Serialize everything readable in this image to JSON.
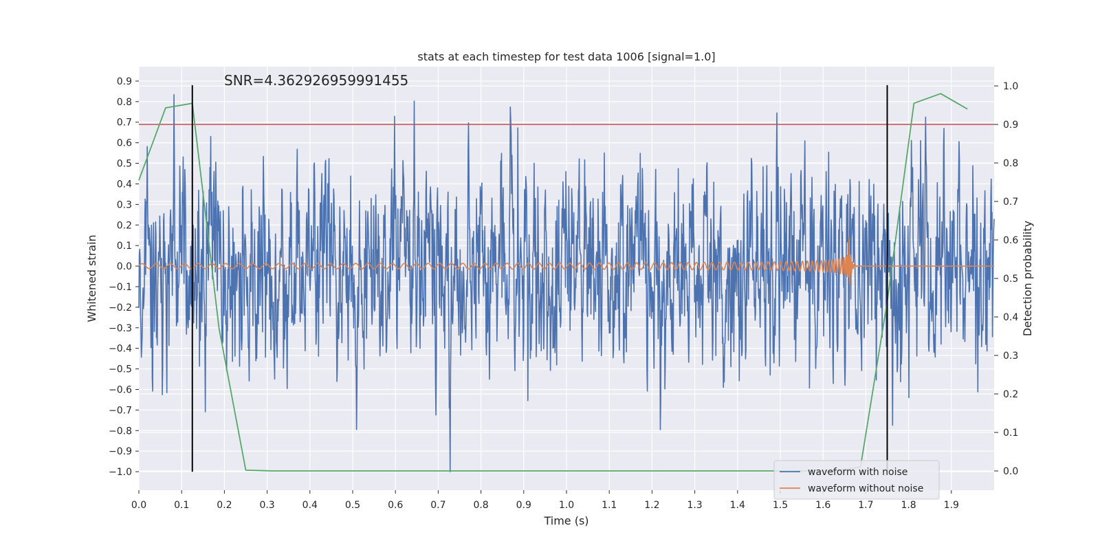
{
  "chart_data": {
    "type": "line",
    "title": "stats at each timestep for test data 1006 [signal=1.0]",
    "xlabel": "Time (s)",
    "ylabel_left": "Whitened strain",
    "ylabel_right": "Detection probability",
    "xlim": [
      0.0,
      2.0
    ],
    "ylim_left": [
      -1.09,
      0.97
    ],
    "ylim_right": [
      -0.05,
      1.05
    ],
    "x_ticks": [
      0.0,
      0.1,
      0.2,
      0.3,
      0.4,
      0.5,
      0.6,
      0.7,
      0.8,
      0.9,
      1.0,
      1.1,
      1.2,
      1.3,
      1.4,
      1.5,
      1.6,
      1.7,
      1.8,
      1.9
    ],
    "x_tick_labels": [
      "0.0",
      "0.1",
      "0.2",
      "0.3",
      "0.4",
      "0.5",
      "0.6",
      "0.7",
      "0.8",
      "0.9",
      "1.0",
      "1.1",
      "1.2",
      "1.3",
      "1.4",
      "1.5",
      "1.6",
      "1.7",
      "1.8",
      "1.9"
    ],
    "y_left_ticks": [
      0.9,
      0.8,
      0.7,
      0.6,
      0.5,
      0.4,
      0.3,
      0.2,
      0.1,
      0.0,
      -0.1,
      -0.2,
      -0.3,
      -0.4,
      -0.5,
      -0.6,
      -0.7,
      -0.8,
      -0.9,
      -1.0
    ],
    "y_left_tick_labels": [
      "0.9",
      "0.8",
      "0.7",
      "0.6",
      "0.5",
      "0.4",
      "0.3",
      "0.2",
      "0.1",
      "0.0",
      "−0.1",
      "−0.2",
      "−0.3",
      "−0.4",
      "−0.5",
      "−0.6",
      "−0.7",
      "−0.8",
      "−0.9",
      "−1.0"
    ],
    "y_right_ticks": [
      1.0,
      0.9,
      0.8,
      0.7,
      0.6,
      0.5,
      0.4,
      0.3,
      0.2,
      0.1,
      0.0
    ],
    "y_right_tick_labels": [
      "1.0",
      "0.9",
      "0.8",
      "0.7",
      "0.6",
      "0.5",
      "0.4",
      "0.3",
      "0.2",
      "0.1",
      "0.0"
    ],
    "annotation": "SNR=4.362926959991455",
    "series": [
      {
        "name": "waveform with noise",
        "color": "#4c72b0",
        "axis": "left",
        "kind": "noise",
        "x_range": [
          0.0,
          2.0
        ],
        "n_points": 2048,
        "approx_std": 0.25,
        "approx_min": -1.0,
        "approx_max": 0.88
      },
      {
        "name": "waveform without noise",
        "color": "#dd8452",
        "axis": "left",
        "kind": "chirp",
        "x_range": [
          0.0,
          2.0
        ],
        "start_amplitude": 0.012,
        "peak_amplitude": 0.17,
        "start_frequency_hz": 30,
        "merger_time_s": 1.66,
        "ringdown_end_s": 1.68
      },
      {
        "name": "detection probability",
        "color": "#55a868",
        "axis": "right",
        "x": [
          0.0,
          0.0625,
          0.125,
          0.1875,
          0.25,
          0.3125,
          0.375,
          0.4375,
          0.5,
          0.5625,
          0.625,
          0.6875,
          0.75,
          0.8125,
          0.875,
          0.9375,
          1.0,
          1.0625,
          1.125,
          1.1875,
          1.25,
          1.3125,
          1.375,
          1.4375,
          1.5,
          1.5625,
          1.625,
          1.6875,
          1.75,
          1.8125,
          1.875,
          1.9375
        ],
        "y": [
          0.755,
          0.943,
          0.955,
          0.37,
          0.002,
          0.0,
          0.0,
          0.0,
          0.0,
          0.0,
          0.0,
          0.0,
          0.0,
          0.0,
          0.0,
          0.0,
          0.0,
          0.0,
          0.0,
          0.0,
          0.0,
          0.0,
          0.0,
          0.0,
          0.0,
          0.0,
          0.0,
          0.01,
          0.44,
          0.955,
          0.98,
          0.94
        ]
      }
    ],
    "threshold": {
      "axis": "right",
      "value": 0.9,
      "color": "#c44e52"
    },
    "vlines": [
      {
        "x": 0.125,
        "ymin": -1.0,
        "ymax": 0.88,
        "color": "#000000"
      },
      {
        "x": 1.75,
        "ymin": -1.0,
        "ymax": 0.88,
        "color": "#000000"
      }
    ],
    "legend": {
      "placement": "lower-right",
      "entries": [
        {
          "label": "waveform with noise",
          "color": "#4c72b0"
        },
        {
          "label": "waveform without noise",
          "color": "#dd8452"
        }
      ]
    },
    "grid": true
  },
  "colors": {
    "plot_background": "#eaeaf2",
    "grid": "#ffffff",
    "text": "#262626"
  }
}
